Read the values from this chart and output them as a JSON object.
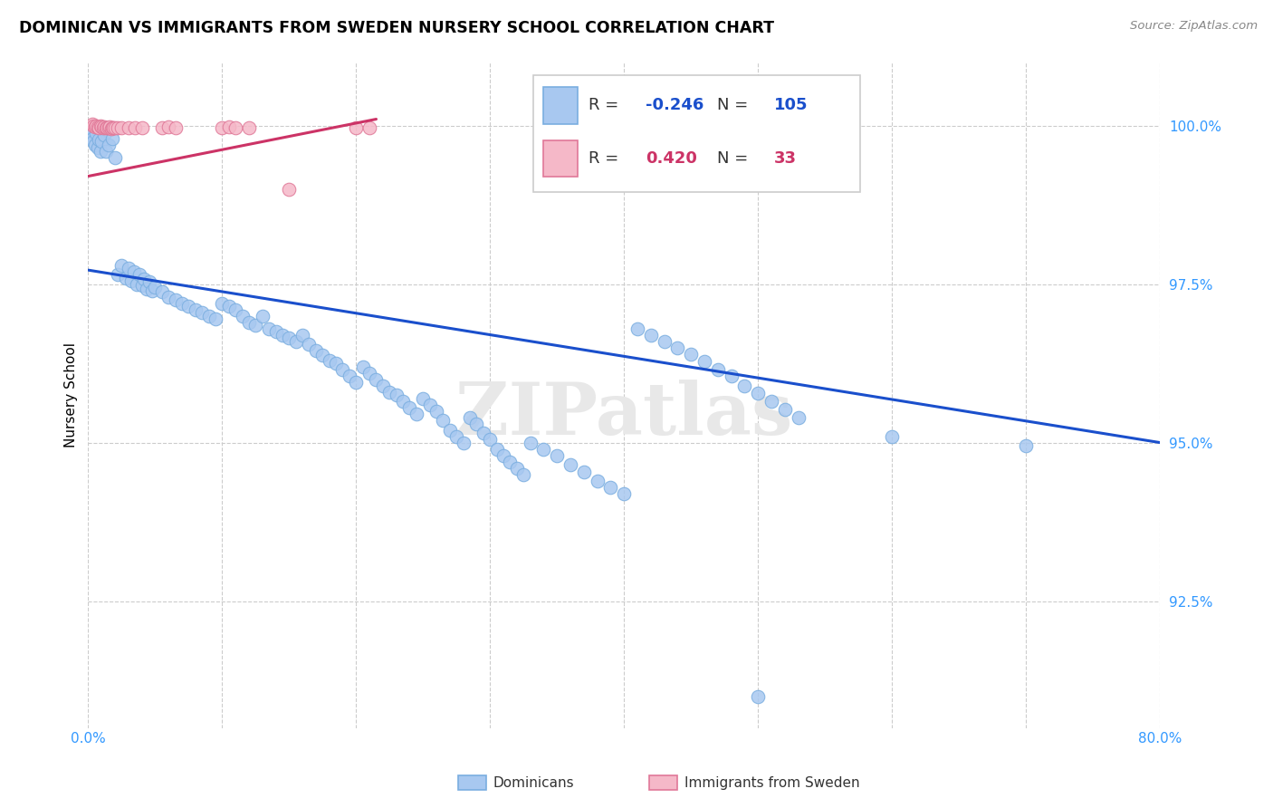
{
  "title": "DOMINICAN VS IMMIGRANTS FROM SWEDEN NURSERY SCHOOL CORRELATION CHART",
  "source": "Source: ZipAtlas.com",
  "ylabel": "Nursery School",
  "ytick_labels": [
    "100.0%",
    "97.5%",
    "95.0%",
    "92.5%"
  ],
  "ytick_values": [
    1.0,
    0.975,
    0.95,
    0.925
  ],
  "xlim": [
    0.0,
    0.8
  ],
  "ylim": [
    0.905,
    1.01
  ],
  "legend_blue_r": "-0.246",
  "legend_blue_n": "105",
  "legend_pink_r": "0.420",
  "legend_pink_n": "33",
  "blue_color": "#a8c8f0",
  "blue_edge_color": "#7aaee0",
  "blue_line_color": "#1a4fcc",
  "pink_color": "#f5b8c8",
  "pink_edge_color": "#e07898",
  "pink_line_color": "#cc3366",
  "watermark": "ZIPatlas",
  "blue_trendline": [
    [
      0.0,
      0.9772
    ],
    [
      0.8,
      0.95
    ]
  ],
  "pink_trendline": [
    [
      0.0,
      0.992
    ],
    [
      0.215,
      1.001
    ]
  ],
  "blue_dots": [
    [
      0.001,
      0.999
    ],
    [
      0.002,
      0.9985
    ],
    [
      0.003,
      0.998
    ],
    [
      0.004,
      0.9975
    ],
    [
      0.005,
      0.997
    ],
    [
      0.006,
      0.9988
    ],
    [
      0.007,
      0.9965
    ],
    [
      0.008,
      0.9978
    ],
    [
      0.009,
      0.996
    ],
    [
      0.01,
      0.9975
    ],
    [
      0.012,
      0.9985
    ],
    [
      0.013,
      0.996
    ],
    [
      0.015,
      0.997
    ],
    [
      0.018,
      0.998
    ],
    [
      0.02,
      0.995
    ],
    [
      0.022,
      0.9765
    ],
    [
      0.025,
      0.978
    ],
    [
      0.028,
      0.976
    ],
    [
      0.03,
      0.9775
    ],
    [
      0.032,
      0.9755
    ],
    [
      0.034,
      0.977
    ],
    [
      0.036,
      0.975
    ],
    [
      0.038,
      0.9765
    ],
    [
      0.04,
      0.9748
    ],
    [
      0.042,
      0.9758
    ],
    [
      0.044,
      0.9742
    ],
    [
      0.046,
      0.9753
    ],
    [
      0.048,
      0.974
    ],
    [
      0.05,
      0.9745
    ],
    [
      0.055,
      0.9738
    ],
    [
      0.06,
      0.973
    ],
    [
      0.065,
      0.9725
    ],
    [
      0.07,
      0.972
    ],
    [
      0.075,
      0.9715
    ],
    [
      0.08,
      0.971
    ],
    [
      0.085,
      0.9705
    ],
    [
      0.09,
      0.97
    ],
    [
      0.095,
      0.9695
    ],
    [
      0.1,
      0.972
    ],
    [
      0.105,
      0.9715
    ],
    [
      0.11,
      0.971
    ],
    [
      0.115,
      0.97
    ],
    [
      0.12,
      0.969
    ],
    [
      0.125,
      0.9685
    ],
    [
      0.13,
      0.97
    ],
    [
      0.135,
      0.968
    ],
    [
      0.14,
      0.9675
    ],
    [
      0.145,
      0.967
    ],
    [
      0.15,
      0.9665
    ],
    [
      0.155,
      0.966
    ],
    [
      0.16,
      0.967
    ],
    [
      0.165,
      0.9655
    ],
    [
      0.17,
      0.9645
    ],
    [
      0.175,
      0.9638
    ],
    [
      0.18,
      0.963
    ],
    [
      0.185,
      0.9625
    ],
    [
      0.19,
      0.9615
    ],
    [
      0.195,
      0.9605
    ],
    [
      0.2,
      0.9595
    ],
    [
      0.205,
      0.962
    ],
    [
      0.21,
      0.961
    ],
    [
      0.215,
      0.96
    ],
    [
      0.22,
      0.959
    ],
    [
      0.225,
      0.958
    ],
    [
      0.23,
      0.9575
    ],
    [
      0.235,
      0.9565
    ],
    [
      0.24,
      0.9555
    ],
    [
      0.245,
      0.9545
    ],
    [
      0.25,
      0.957
    ],
    [
      0.255,
      0.956
    ],
    [
      0.26,
      0.955
    ],
    [
      0.265,
      0.9535
    ],
    [
      0.27,
      0.952
    ],
    [
      0.275,
      0.951
    ],
    [
      0.28,
      0.95
    ],
    [
      0.285,
      0.954
    ],
    [
      0.29,
      0.953
    ],
    [
      0.295,
      0.9515
    ],
    [
      0.3,
      0.9505
    ],
    [
      0.305,
      0.949
    ],
    [
      0.31,
      0.948
    ],
    [
      0.315,
      0.947
    ],
    [
      0.32,
      0.946
    ],
    [
      0.325,
      0.945
    ],
    [
      0.33,
      0.95
    ],
    [
      0.34,
      0.949
    ],
    [
      0.35,
      0.948
    ],
    [
      0.36,
      0.9465
    ],
    [
      0.37,
      0.9453
    ],
    [
      0.38,
      0.944
    ],
    [
      0.39,
      0.943
    ],
    [
      0.4,
      0.942
    ],
    [
      0.41,
      0.968
    ],
    [
      0.42,
      0.967
    ],
    [
      0.43,
      0.966
    ],
    [
      0.44,
      0.965
    ],
    [
      0.45,
      0.964
    ],
    [
      0.46,
      0.9628
    ],
    [
      0.47,
      0.9615
    ],
    [
      0.48,
      0.9605
    ],
    [
      0.49,
      0.959
    ],
    [
      0.5,
      0.9578
    ],
    [
      0.51,
      0.9565
    ],
    [
      0.52,
      0.9552
    ],
    [
      0.53,
      0.954
    ],
    [
      0.6,
      0.951
    ],
    [
      0.7,
      0.9495
    ],
    [
      0.5,
      0.91
    ]
  ],
  "pink_dots": [
    [
      0.003,
      1.0002
    ],
    [
      0.004,
      1.0
    ],
    [
      0.005,
      0.9998
    ],
    [
      0.006,
      1.0
    ],
    [
      0.007,
      0.9998
    ],
    [
      0.008,
      0.9997
    ],
    [
      0.009,
      0.9999
    ],
    [
      0.01,
      0.9998
    ],
    [
      0.011,
      0.9997
    ],
    [
      0.012,
      0.9998
    ],
    [
      0.013,
      0.9997
    ],
    [
      0.014,
      0.9996
    ],
    [
      0.015,
      0.9997
    ],
    [
      0.016,
      0.9998
    ],
    [
      0.017,
      0.9995
    ],
    [
      0.018,
      0.9997
    ],
    [
      0.019,
      0.9996
    ],
    [
      0.02,
      0.9997
    ],
    [
      0.022,
      0.9996
    ],
    [
      0.025,
      0.9997
    ],
    [
      0.03,
      0.9996
    ],
    [
      0.035,
      0.9997
    ],
    [
      0.04,
      0.9996
    ],
    [
      0.055,
      0.9997
    ],
    [
      0.06,
      0.9998
    ],
    [
      0.065,
      0.9997
    ],
    [
      0.1,
      0.9997
    ],
    [
      0.105,
      0.9998
    ],
    [
      0.11,
      0.9996
    ],
    [
      0.12,
      0.9997
    ],
    [
      0.15,
      0.99
    ],
    [
      0.2,
      0.9997
    ],
    [
      0.21,
      0.9997
    ]
  ]
}
